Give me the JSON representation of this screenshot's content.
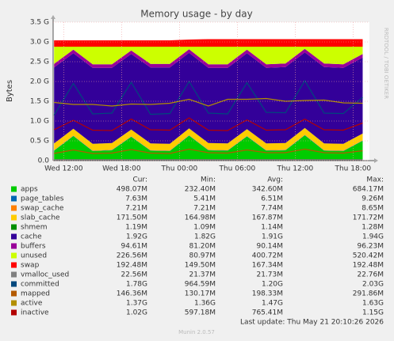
{
  "chart_data": {
    "type": "area",
    "title": "Memory usage - by day",
    "ylabel": "Bytes",
    "watermark": "RRDTOOL / TOBI OETIKER",
    "x": [
      11,
      13,
      15,
      17,
      19,
      21,
      23,
      25,
      27,
      29,
      31,
      33,
      35,
      37,
      39,
      41,
      43
    ],
    "xlim": [
      10.9,
      43.7
    ],
    "xticks": [
      {
        "value": 12,
        "label": "Wed 12:00"
      },
      {
        "value": 18,
        "label": "Wed 18:00"
      },
      {
        "value": 24,
        "label": "Thu 00:00"
      },
      {
        "value": 30,
        "label": "Thu 06:00"
      },
      {
        "value": 36,
        "label": "Thu 12:00"
      },
      {
        "value": 42,
        "label": "Thu 18:00"
      }
    ],
    "ylim": [
      0,
      3.5
    ],
    "yticks": [
      {
        "value": 0,
        "label": "0.0"
      },
      {
        "value": 0.5,
        "label": "0.5 G"
      },
      {
        "value": 1,
        "label": "1.0 G"
      },
      {
        "value": 1.5,
        "label": "1.5 G"
      },
      {
        "value": 2,
        "label": "2.0 G"
      },
      {
        "value": 2.5,
        "label": "2.5 G"
      },
      {
        "value": 3,
        "label": "3.0 G"
      },
      {
        "value": 3.5,
        "label": "3.5 G"
      }
    ],
    "grid": true,
    "stats_headers": [
      "Cur:",
      "Min:",
      "Avg:",
      "Max:"
    ],
    "series": [
      {
        "name": "apps",
        "color": "#00cc00",
        "stacked": true,
        "values": [
          0.25,
          0.62,
          0.24,
          0.26,
          0.6,
          0.25,
          0.24,
          0.63,
          0.26,
          0.25,
          0.61,
          0.25,
          0.26,
          0.64,
          0.25,
          0.24,
          0.5
        ],
        "stats": [
          "498.07M",
          "232.40M",
          "342.60M",
          "684.17M"
        ]
      },
      {
        "name": "page_tables",
        "color": "#0066b3",
        "stacked": true,
        "values": [
          0.007,
          0.007,
          0.007,
          0.007,
          0.007,
          0.007,
          0.007,
          0.007,
          0.007,
          0.007,
          0.007,
          0.007,
          0.007,
          0.007,
          0.007,
          0.007,
          0.007
        ],
        "stats": [
          "7.63M",
          "5.41M",
          "6.51M",
          "9.26M"
        ]
      },
      {
        "name": "swap_cache",
        "color": "#ff8000",
        "stacked": true,
        "values": [
          0.007,
          0.007,
          0.007,
          0.007,
          0.007,
          0.007,
          0.007,
          0.007,
          0.007,
          0.007,
          0.007,
          0.007,
          0.007,
          0.007,
          0.007,
          0.007,
          0.007
        ],
        "stats": [
          "7.21M",
          "7.21M",
          "7.74M",
          "8.65M"
        ]
      },
      {
        "name": "slab_cache",
        "color": "#ffcc00",
        "stacked": true,
        "values": [
          0.17,
          0.17,
          0.17,
          0.17,
          0.17,
          0.17,
          0.17,
          0.17,
          0.17,
          0.17,
          0.17,
          0.17,
          0.17,
          0.17,
          0.17,
          0.17,
          0.17
        ],
        "stats": [
          "171.50M",
          "164.98M",
          "167.87M",
          "171.72M"
        ]
      },
      {
        "name": "shmem",
        "color": "#008f00",
        "stacked": true,
        "values": [
          0.001,
          0.001,
          0.001,
          0.001,
          0.001,
          0.001,
          0.001,
          0.001,
          0.001,
          0.001,
          0.001,
          0.001,
          0.001,
          0.001,
          0.001,
          0.001,
          0.001
        ],
        "stats": [
          "1.19M",
          "1.09M",
          "1.14M",
          "1.28M"
        ]
      },
      {
        "name": "cache",
        "color": "#330099",
        "stacked": true,
        "values": [
          1.92,
          1.91,
          1.92,
          1.9,
          1.91,
          1.92,
          1.93,
          1.91,
          1.9,
          1.91,
          1.92,
          1.91,
          1.92,
          1.91,
          1.93,
          1.92,
          1.92
        ],
        "stats": [
          "1.92G",
          "1.82G",
          "1.91G",
          "1.94G"
        ]
      },
      {
        "name": "buffers",
        "color": "#990099",
        "stacked": true,
        "values": [
          0.09,
          0.09,
          0.09,
          0.09,
          0.09,
          0.09,
          0.09,
          0.09,
          0.09,
          0.09,
          0.09,
          0.09,
          0.09,
          0.09,
          0.09,
          0.09,
          0.09
        ],
        "stats": [
          "94.61M",
          "81.20M",
          "90.14M",
          "96.23M"
        ]
      },
      {
        "name": "unused",
        "color": "#ccff00",
        "stacked": true,
        "values": [
          0.435,
          0.075,
          0.445,
          0.445,
          0.095,
          0.435,
          0.435,
          0.065,
          0.445,
          0.445,
          0.075,
          0.445,
          0.425,
          0.055,
          0.425,
          0.445,
          0.185
        ],
        "stats": [
          "226.56M",
          "80.97M",
          "400.72M",
          "520.42M"
        ]
      },
      {
        "name": "swap",
        "color": "#ff0000",
        "stacked": true,
        "values": [
          0.16,
          0.16,
          0.16,
          0.16,
          0.16,
          0.16,
          0.16,
          0.18,
          0.19,
          0.19,
          0.19,
          0.19,
          0.19,
          0.19,
          0.19,
          0.19,
          0.19
        ],
        "stats": [
          "192.48M",
          "149.50M",
          "167.34M",
          "192.48M"
        ]
      },
      {
        "name": "vmalloc_used",
        "color": "#808080",
        "stacked": false,
        "values": [
          0.022,
          0.022,
          0.022,
          0.022,
          0.022,
          0.022,
          0.022,
          0.022,
          0.022,
          0.022,
          0.022,
          0.022,
          0.022,
          0.022,
          0.022,
          0.022,
          0.022
        ],
        "stats": [
          "22.56M",
          "21.37M",
          "21.73M",
          "22.76M"
        ]
      },
      {
        "name": "committed",
        "color": "#00487d",
        "stacked": false,
        "values": [
          1.15,
          1.95,
          1.18,
          1.2,
          1.98,
          1.17,
          1.19,
          2.0,
          1.2,
          1.18,
          1.97,
          1.22,
          1.21,
          2.02,
          1.2,
          1.19,
          1.6
        ],
        "stats": [
          "1.78G",
          "964.59M",
          "1.20G",
          "2.03G"
        ]
      },
      {
        "name": "mapped",
        "color": "#b35a00",
        "stacked": false,
        "values": [
          0.18,
          0.27,
          0.18,
          0.19,
          0.28,
          0.19,
          0.18,
          0.29,
          0.2,
          0.19,
          0.27,
          0.2,
          0.2,
          0.29,
          0.2,
          0.19,
          0.25
        ],
        "stats": [
          "146.36M",
          "130.17M",
          "198.33M",
          "291.86M"
        ]
      },
      {
        "name": "active",
        "color": "#b38f00",
        "stacked": false,
        "values": [
          1.47,
          1.42,
          1.42,
          1.38,
          1.43,
          1.42,
          1.45,
          1.55,
          1.38,
          1.55,
          1.55,
          1.57,
          1.5,
          1.52,
          1.53,
          1.46,
          1.45
        ],
        "stats": [
          "1.37G",
          "1.36G",
          "1.47G",
          "1.63G"
        ]
      },
      {
        "name": "inactive",
        "color": "#b30000",
        "stacked": false,
        "values": [
          0.78,
          1.02,
          0.77,
          0.76,
          1.05,
          0.78,
          0.77,
          1.08,
          0.77,
          0.76,
          1.03,
          0.77,
          0.78,
          1.05,
          0.78,
          0.77,
          0.95
        ],
        "stats": [
          "1.02G",
          "597.18M",
          "765.41M",
          "1.15G"
        ]
      }
    ],
    "last_update": "Last update: Thu May 21 20:10:26 2026",
    "footer": "Munin 2.0.57"
  }
}
